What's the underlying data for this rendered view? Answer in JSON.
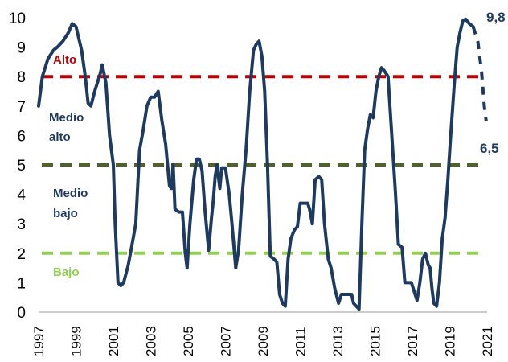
{
  "chart_data": {
    "type": "line",
    "title": "",
    "xlabel": "",
    "ylabel": "",
    "ylim": [
      0,
      10
    ],
    "xlim": [
      1997,
      2021
    ],
    "grid": false,
    "legend": "none",
    "y_ticks": [
      "0",
      "1",
      "2",
      "3",
      "4",
      "5",
      "6",
      "7",
      "8",
      "9",
      "10"
    ],
    "x_ticks": [
      "1997",
      "1999",
      "2001",
      "2003",
      "2005",
      "2007",
      "2009",
      "2011",
      "2013",
      "2015",
      "2017",
      "2019",
      "2021"
    ],
    "thresholds": [
      {
        "value": 8,
        "color": "#c00000"
      },
      {
        "value": 5,
        "color": "#4f6228"
      },
      {
        "value": 2,
        "color": "#92d050"
      }
    ],
    "zone_labels": [
      {
        "text": "Alto",
        "color": "#c00000"
      },
      {
        "text": "Medio alto",
        "color": "#1f3a5f"
      },
      {
        "text": "Medio bajo",
        "color": "#1f3a5f"
      },
      {
        "text": "Bajo",
        "color": "#92d050"
      }
    ],
    "end_labels": {
      "high": "9,8",
      "low": "6,5"
    },
    "series": [
      {
        "color": "#1f3a5f",
        "style": "solid",
        "points": [
          [
            1997.0,
            7.0
          ],
          [
            1997.2,
            8.0
          ],
          [
            1997.5,
            8.6
          ],
          [
            1997.8,
            8.9
          ],
          [
            1998.0,
            9.0
          ],
          [
            1998.3,
            9.2
          ],
          [
            1998.6,
            9.5
          ],
          [
            1998.8,
            9.8
          ],
          [
            1999.0,
            9.7
          ],
          [
            1999.3,
            8.9
          ],
          [
            1999.5,
            8.0
          ],
          [
            1999.65,
            7.1
          ],
          [
            1999.8,
            7.0
          ],
          [
            2000.0,
            7.5
          ],
          [
            2000.3,
            8.1
          ],
          [
            2000.4,
            8.4
          ],
          [
            2000.6,
            7.8
          ],
          [
            2000.8,
            6.0
          ],
          [
            2001.0,
            5.0
          ],
          [
            2001.1,
            3.0
          ],
          [
            2001.25,
            1.0
          ],
          [
            2001.4,
            0.9
          ],
          [
            2001.55,
            1.0
          ],
          [
            2001.8,
            1.6
          ],
          [
            2002.0,
            2.3
          ],
          [
            2002.2,
            3.0
          ],
          [
            2002.4,
            5.5
          ],
          [
            2002.6,
            6.2
          ],
          [
            2002.8,
            7.0
          ],
          [
            2003.0,
            7.3
          ],
          [
            2003.2,
            7.3
          ],
          [
            2003.4,
            7.5
          ],
          [
            2003.6,
            6.5
          ],
          [
            2003.8,
            5.7
          ],
          [
            2004.0,
            4.3
          ],
          [
            2004.1,
            4.2
          ],
          [
            2004.2,
            5.0
          ],
          [
            2004.3,
            3.5
          ],
          [
            2004.5,
            3.4
          ],
          [
            2004.7,
            3.4
          ],
          [
            2004.85,
            2.0
          ],
          [
            2004.95,
            1.5
          ],
          [
            2005.1,
            3.0
          ],
          [
            2005.3,
            4.5
          ],
          [
            2005.45,
            5.2
          ],
          [
            2005.6,
            5.2
          ],
          [
            2005.75,
            4.8
          ],
          [
            2005.9,
            3.5
          ],
          [
            2006.1,
            2.1
          ],
          [
            2006.25,
            3.2
          ],
          [
            2006.35,
            3.8
          ],
          [
            2006.45,
            4.6
          ],
          [
            2006.55,
            5.0
          ],
          [
            2006.7,
            4.2
          ],
          [
            2006.8,
            4.9
          ],
          [
            2007.0,
            4.9
          ],
          [
            2007.2,
            4.0
          ],
          [
            2007.35,
            3.0
          ],
          [
            2007.55,
            1.5
          ],
          [
            2007.7,
            2.1
          ],
          [
            2007.9,
            4.0
          ],
          [
            2008.1,
            5.5
          ],
          [
            2008.3,
            7.5
          ],
          [
            2008.5,
            8.9
          ],
          [
            2008.65,
            9.1
          ],
          [
            2008.8,
            9.2
          ],
          [
            2008.95,
            8.7
          ],
          [
            2009.1,
            7.5
          ],
          [
            2009.25,
            5.0
          ],
          [
            2009.4,
            1.9
          ],
          [
            2009.6,
            1.8
          ],
          [
            2009.75,
            1.7
          ],
          [
            2009.9,
            0.6
          ],
          [
            2010.05,
            0.3
          ],
          [
            2010.2,
            0.2
          ],
          [
            2010.35,
            1.8
          ],
          [
            2010.5,
            2.5
          ],
          [
            2010.7,
            2.8
          ],
          [
            2010.85,
            2.9
          ],
          [
            2011.0,
            3.7
          ],
          [
            2011.2,
            3.7
          ],
          [
            2011.4,
            3.7
          ],
          [
            2011.5,
            3.5
          ],
          [
            2011.65,
            3.0
          ],
          [
            2011.8,
            4.5
          ],
          [
            2012.0,
            4.6
          ],
          [
            2012.15,
            4.5
          ],
          [
            2012.3,
            3.0
          ],
          [
            2012.5,
            1.8
          ],
          [
            2012.65,
            1.5
          ],
          [
            2012.85,
            0.8
          ],
          [
            2013.05,
            0.3
          ],
          [
            2013.2,
            0.6
          ],
          [
            2013.5,
            0.6
          ],
          [
            2013.75,
            0.6
          ],
          [
            2013.85,
            0.3
          ],
          [
            2014.0,
            0.2
          ],
          [
            2014.15,
            0.1
          ],
          [
            2014.3,
            3.0
          ],
          [
            2014.45,
            5.5
          ],
          [
            2014.6,
            6.2
          ],
          [
            2014.75,
            6.7
          ],
          [
            2014.9,
            6.6
          ],
          [
            2015.05,
            7.5
          ],
          [
            2015.2,
            8.0
          ],
          [
            2015.35,
            8.3
          ],
          [
            2015.5,
            8.2
          ],
          [
            2015.7,
            8.0
          ],
          [
            2015.8,
            7.0
          ],
          [
            2015.95,
            5.5
          ],
          [
            2016.1,
            4.0
          ],
          [
            2016.25,
            2.3
          ],
          [
            2016.45,
            2.2
          ],
          [
            2016.6,
            1.0
          ],
          [
            2016.8,
            1.0
          ],
          [
            2016.95,
            1.0
          ],
          [
            2017.1,
            0.7
          ],
          [
            2017.25,
            0.4
          ],
          [
            2017.4,
            1.0
          ],
          [
            2017.55,
            1.8
          ],
          [
            2017.7,
            2.0
          ],
          [
            2017.85,
            1.6
          ],
          [
            2017.95,
            1.5
          ],
          [
            2018.05,
            0.8
          ],
          [
            2018.15,
            0.3
          ],
          [
            2018.3,
            0.2
          ],
          [
            2018.45,
            1.0
          ],
          [
            2018.6,
            2.5
          ],
          [
            2018.75,
            3.2
          ],
          [
            2018.9,
            4.5
          ],
          [
            2019.05,
            6.0
          ],
          [
            2019.25,
            7.8
          ],
          [
            2019.4,
            9.0
          ],
          [
            2019.55,
            9.5
          ],
          [
            2019.7,
            9.9
          ],
          [
            2019.85,
            9.95
          ],
          [
            2020.05,
            9.8
          ],
          [
            2020.25,
            9.7
          ]
        ]
      },
      {
        "color": "#1f3a5f",
        "style": "dashed",
        "points": [
          [
            2020.25,
            9.7
          ],
          [
            2020.5,
            9.2
          ],
          [
            2020.7,
            8.2
          ],
          [
            2020.85,
            7.0
          ],
          [
            2020.95,
            6.5
          ]
        ]
      }
    ]
  }
}
